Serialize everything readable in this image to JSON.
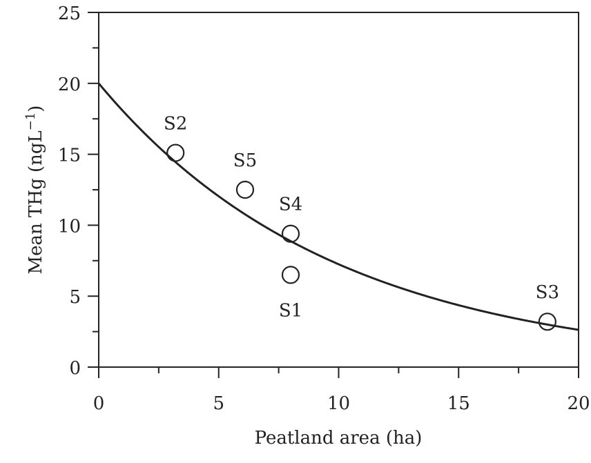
{
  "chart_data": {
    "type": "scatter",
    "title": "",
    "xlabel": "Peatland area (ha)",
    "ylabel_main": "Mean THg (ngL",
    "ylabel_sup": "−1",
    "ylabel_close": ")",
    "xlim": [
      0,
      20
    ],
    "ylim": [
      0,
      25
    ],
    "x_major_ticks": [
      0,
      5,
      10,
      15,
      20
    ],
    "x_minor_ticks": [
      2.5,
      7.5,
      12.5,
      17.5
    ],
    "y_major_ticks": [
      0,
      5,
      10,
      15,
      20,
      25
    ],
    "y_minor_ticks": [
      2.5,
      7.5,
      12.5,
      17.5,
      22.5
    ],
    "grid": false,
    "legend": "none",
    "points": [
      {
        "label": "S2",
        "x": 3.2,
        "y": 15.1,
        "label_pos": "above"
      },
      {
        "label": "S5",
        "x": 6.1,
        "y": 12.5,
        "label_pos": "above"
      },
      {
        "label": "S4",
        "x": 8.0,
        "y": 9.4,
        "label_pos": "above"
      },
      {
        "label": "S1",
        "x": 8.0,
        "y": 6.5,
        "label_pos": "below"
      },
      {
        "label": "S3",
        "x": 18.7,
        "y": 3.2,
        "label_pos": "above"
      }
    ],
    "fit_curve": {
      "type": "exponential",
      "description": "y = a * exp(-b * x)",
      "a": 20.0,
      "b": 0.1015
    }
  }
}
